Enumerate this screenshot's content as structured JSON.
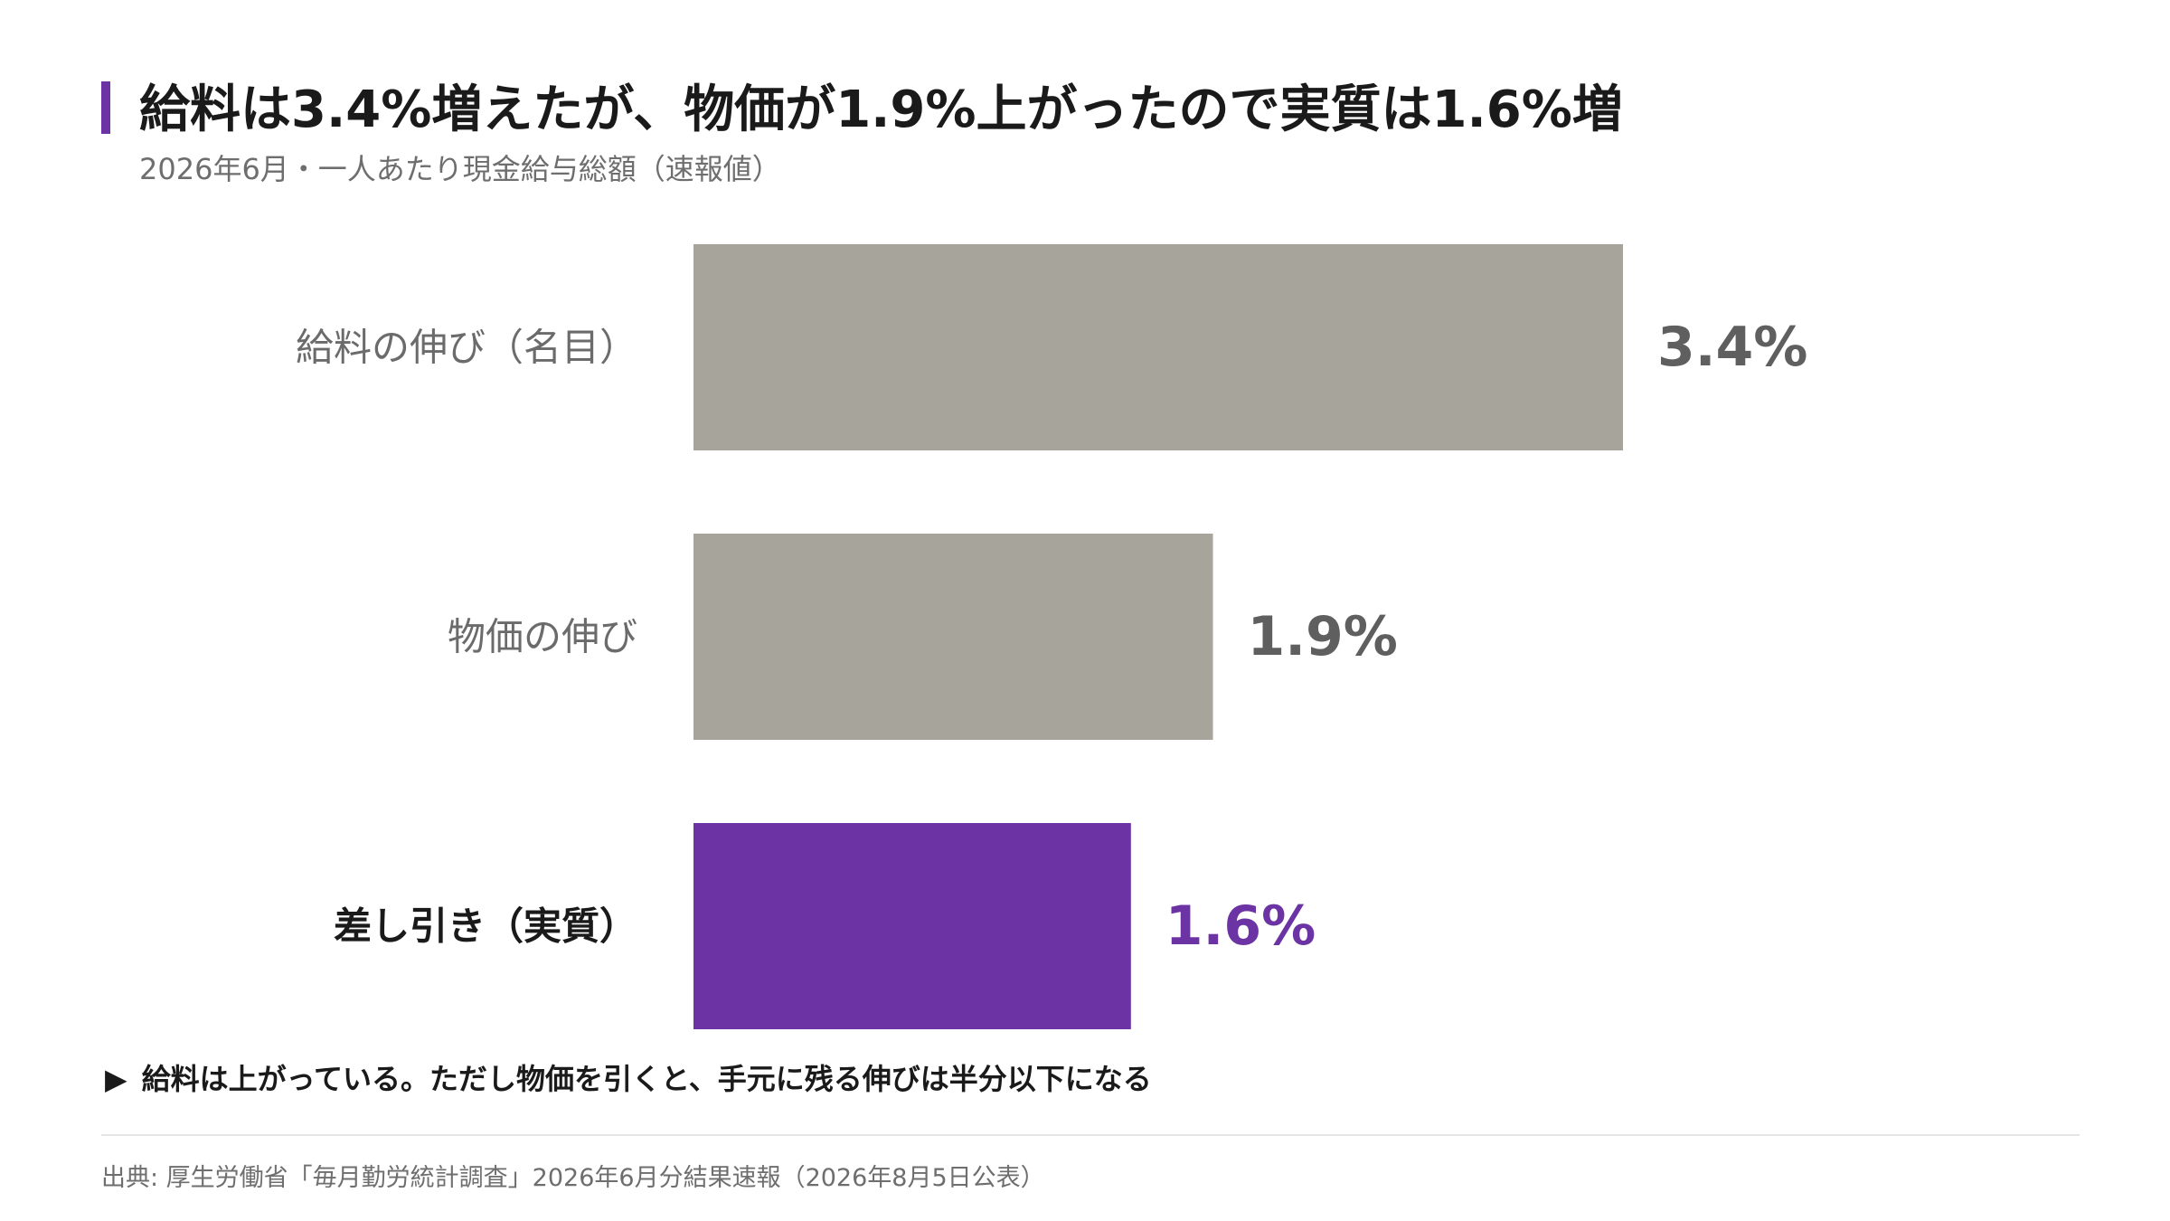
{
  "title": "給料は3.4%増えたが、物価が1.9%上がったので実質は1.6%増",
  "subtitle": "2026年6月・一人あたり現金給与総額（速報値）",
  "colors": {
    "accent": "#6b33a3",
    "bar_neutral": "#a6a49b",
    "label_neutral": "#6b6b6b",
    "value_neutral": "#5f5f5f",
    "highlight": "#6b33a3"
  },
  "chart_data": {
    "type": "bar",
    "orientation": "horizontal",
    "categories": [
      "給料の伸び（名目）",
      "物価の伸び",
      "差し引き（実質）"
    ],
    "values": [
      3.4,
      1.9,
      1.6
    ],
    "value_labels": [
      "3.4%",
      "1.9%",
      "1.6%"
    ],
    "highlight_index": 2,
    "xlim": [
      0,
      3.4
    ],
    "grid": false,
    "unit": "%"
  },
  "note": {
    "marker": "▶",
    "text": "給料は上がっている。ただし物価を引くと、手元に残る伸びは半分以下になる"
  },
  "source": "出典: 厚生労働省「毎月勤労統計調査」2026年6月分結果速報（2026年8月5日公表）"
}
